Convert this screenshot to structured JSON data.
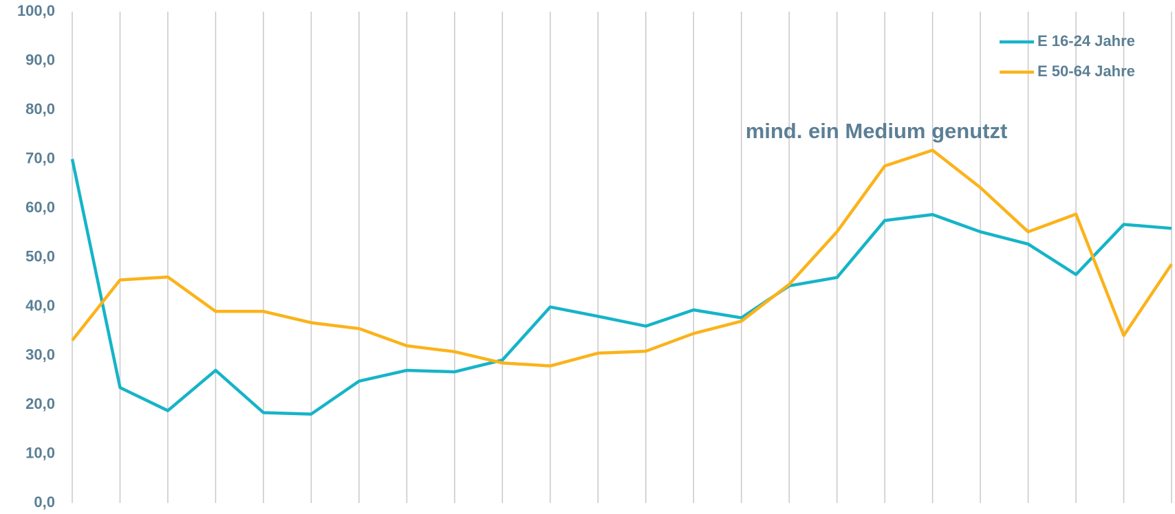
{
  "chart_data": {
    "type": "line",
    "annotation": "mind. ein Medium genutzt",
    "categories": [
      null,
      null,
      null,
      null,
      null,
      null,
      null,
      null,
      null,
      null,
      null,
      null,
      null,
      null,
      null,
      null,
      null,
      null,
      null,
      null,
      null,
      null,
      null,
      null
    ],
    "series": [
      {
        "name": "E 16-24 Jahre",
        "color": "#16b4c8",
        "values": [
          70.0,
          23.5,
          18.8,
          27.0,
          18.4,
          18.1,
          24.8,
          27.0,
          26.7,
          29.1,
          39.9,
          38.0,
          36.0,
          39.3,
          37.7,
          44.2,
          45.9,
          57.5,
          58.7,
          55.2,
          52.7,
          46.5,
          56.7,
          55.9
        ]
      },
      {
        "name": "E 50-64 Jahre",
        "color": "#fbb31a",
        "values": [
          33.1,
          45.4,
          46.0,
          39.0,
          39.0,
          36.7,
          35.5,
          32.0,
          30.8,
          28.5,
          27.9,
          30.5,
          30.9,
          34.5,
          37.0,
          44.5,
          55.2,
          68.6,
          71.8,
          64.2,
          55.2,
          58.8,
          34.1,
          48.6
        ]
      }
    ],
    "ylim": [
      0,
      100
    ],
    "yticks": [
      {
        "value": 0,
        "label": "0,0"
      },
      {
        "value": 10,
        "label": "10,0"
      },
      {
        "value": 20,
        "label": "20,0"
      },
      {
        "value": 30,
        "label": "30,0"
      },
      {
        "value": 40,
        "label": "40,0"
      },
      {
        "value": 50,
        "label": "50,0"
      },
      {
        "value": 60,
        "label": "60,0"
      },
      {
        "value": 70,
        "label": "70,0"
      },
      {
        "value": 80,
        "label": "80,0"
      },
      {
        "value": 90,
        "label": "90,0"
      },
      {
        "value": 100,
        "label": "100,0"
      }
    ],
    "grid": "vertical",
    "legend": "top-right"
  }
}
